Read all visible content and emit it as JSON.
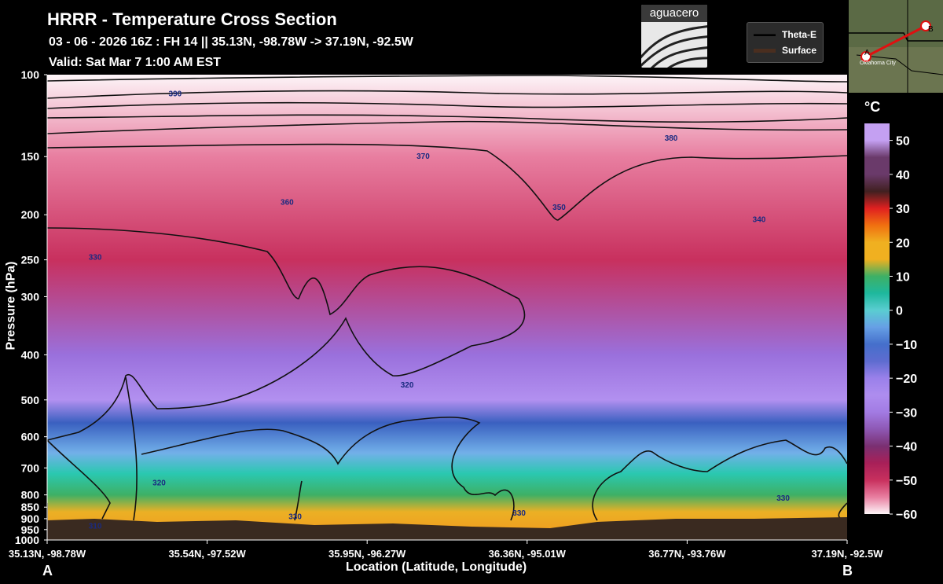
{
  "header": {
    "title": "HRRR - Temperature Cross Section",
    "subtitle": "03 - 06 - 2026  16Z : FH 14 || 35.13N, -98.78W -> 37.19N, -92.5W",
    "valid": "Valid: Sat Mar 7 1:00 AM EST"
  },
  "logo": {
    "text": "aguacero"
  },
  "legend": {
    "items": [
      {
        "label": "Theta-E",
        "color": "#000000"
      },
      {
        "label": "Surface",
        "color": "#4a2e1f"
      }
    ]
  },
  "inset_map": {
    "start_label": "A",
    "end_label": "B",
    "city_label": "Oklahoma City"
  },
  "colorbar": {
    "unit": "°C",
    "ticks": [
      "50",
      "40",
      "30",
      "20",
      "10",
      "0",
      "−10",
      "−20",
      "−30",
      "−40",
      "−50",
      "−60"
    ],
    "range": [
      -60,
      55
    ],
    "colors": [
      "#fdf5f8",
      "#d83a6a",
      "#b0194d",
      "#5a3070",
      "#8a6ad8",
      "#b88cf2",
      "#4a78d8",
      "#8ad0f0",
      "#1fbf9f",
      "#5ab43a",
      "#f0b020",
      "#f07010",
      "#e01818",
      "#402020",
      "#b060a0",
      "#c8a0f0"
    ]
  },
  "chart_data": {
    "type": "heatmap",
    "title": "HRRR - Temperature Cross Section",
    "xlabel": "Location (Latitude, Longitude)",
    "ylabel": "Pressure (hPa)",
    "x_ticks": [
      "35.13N, -98.78W",
      "35.54N, -97.52W",
      "35.95N, -96.27W",
      "36.36N, -95.01W",
      "36.77N, -93.76W",
      "37.19N, -92.5W"
    ],
    "y_ticks": [
      100,
      150,
      200,
      250,
      300,
      400,
      500,
      600,
      700,
      800,
      850,
      900,
      950,
      1000
    ],
    "y_scale": "log",
    "ylim": [
      1000,
      100
    ],
    "endpoints": [
      "A",
      "B"
    ],
    "temperature_profile": [
      {
        "pressure": 100,
        "temp": -60
      },
      {
        "pressure": 150,
        "temp": -55
      },
      {
        "pressure": 250,
        "temp": -50
      },
      {
        "pressure": 400,
        "temp": -32
      },
      {
        "pressure": 500,
        "temp": -26
      },
      {
        "pressure": 560,
        "temp": -12
      },
      {
        "pressure": 650,
        "temp": -4
      },
      {
        "pressure": 720,
        "temp": 2
      },
      {
        "pressure": 800,
        "temp": 10
      },
      {
        "pressure": 870,
        "temp": 18
      },
      {
        "pressure": 950,
        "temp": 22
      }
    ],
    "theta_e_contour_labels": [
      {
        "label": "390",
        "x": 0.16,
        "pressure": 110
      },
      {
        "label": "370",
        "x": 0.47,
        "pressure": 150
      },
      {
        "label": "380",
        "x": 0.78,
        "pressure": 137
      },
      {
        "label": "360",
        "x": 0.3,
        "pressure": 188
      },
      {
        "label": "350",
        "x": 0.64,
        "pressure": 193
      },
      {
        "label": "340",
        "x": 0.89,
        "pressure": 205
      },
      {
        "label": "330",
        "x": 0.06,
        "pressure": 247
      },
      {
        "label": "320",
        "x": 0.45,
        "pressure": 465
      },
      {
        "label": "320",
        "x": 0.14,
        "pressure": 755
      },
      {
        "label": "330",
        "x": 0.31,
        "pressure": 892
      },
      {
        "label": "330",
        "x": 0.59,
        "pressure": 876
      },
      {
        "label": "330",
        "x": 0.92,
        "pressure": 813
      },
      {
        "label": "310",
        "x": 0.06,
        "pressure": 935
      }
    ],
    "series": [
      {
        "name": "Theta-E"
      },
      {
        "name": "Surface"
      }
    ]
  }
}
